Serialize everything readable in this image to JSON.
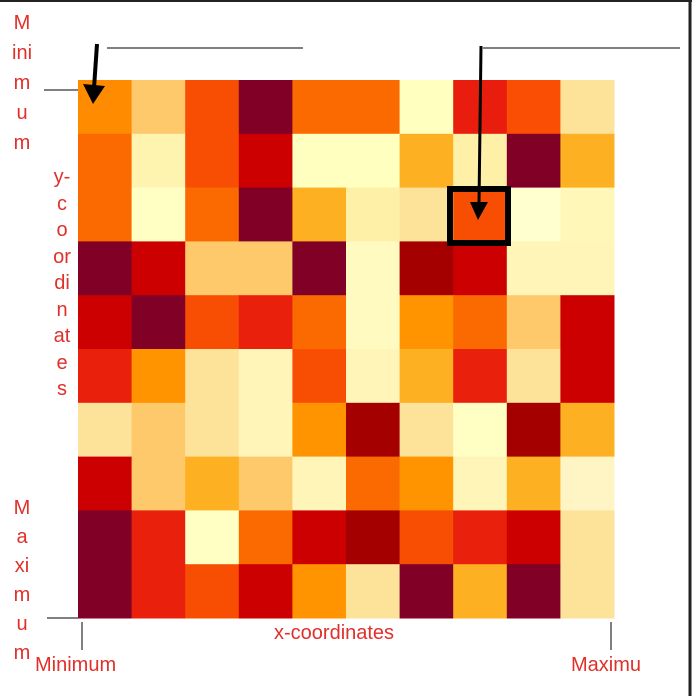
{
  "labels": {
    "y_min": "Minimum",
    "y_axis": "y-coordinates",
    "y_max": "Maximum",
    "x_axis": "x-coordinates",
    "x_min": "Minimum",
    "x_max": "Maximu"
  },
  "grid": {
    "colors": [
      [
        "#ff8c00",
        "#fdc96a",
        "#f84e04",
        "#800026",
        "#fb6a00",
        "#fb6a00",
        "#ffffc0",
        "#e81d0e",
        "#fa4e04",
        "#fde29a"
      ],
      [
        "#fb6a00",
        "#fff3b0",
        "#f84e04",
        "#cc0000",
        "#ffffc0",
        "#ffffc0",
        "#fdb022",
        "#fff0a8",
        "#800026",
        "#fdb022"
      ],
      [
        "#fb6a00",
        "#ffffc4",
        "#fb6a00",
        "#800026",
        "#fdb022",
        "#fff0a8",
        "#fde29a",
        "#f84e04",
        "#ffffd0",
        "#fff7b8"
      ],
      [
        "#800026",
        "#cc0000",
        "#fdc96a",
        "#fdc96a",
        "#800026",
        "#fffbc0",
        "#a50000",
        "#cc0000",
        "#fff5b8",
        "#fff5b8"
      ],
      [
        "#cc0000",
        "#800026",
        "#f84e04",
        "#e8200c",
        "#fb6a00",
        "#fffbc0",
        "#ff9400",
        "#fb6a00",
        "#fdc96a",
        "#cc0000"
      ],
      [
        "#e8200c",
        "#ff9400",
        "#fde29a",
        "#fff5b8",
        "#f84e04",
        "#fff5b8",
        "#fdb022",
        "#e8200c",
        "#fde29a",
        "#cc0000"
      ],
      [
        "#fde29a",
        "#fdc96a",
        "#fde29a",
        "#fff5b8",
        "#ff9400",
        "#a50000",
        "#fde29a",
        "#ffffc4",
        "#a50000",
        "#fdb022"
      ],
      [
        "#cc0000",
        "#fdc96a",
        "#fdb022",
        "#fdc96a",
        "#fff5b8",
        "#fb6a00",
        "#ff9400",
        "#fff5b8",
        "#fdb022",
        "#fff5c4"
      ],
      [
        "#800026",
        "#e8200c",
        "#ffffc4",
        "#fb6a00",
        "#cc0000",
        "#a50000",
        "#f84e04",
        "#e8200c",
        "#cc0000",
        "#fde29a"
      ],
      [
        "#800026",
        "#e8200c",
        "#f84e04",
        "#cc0000",
        "#ff9400",
        "#fde29a",
        "#800026",
        "#fdb022",
        "#800026",
        "#fde29a"
      ]
    ]
  }
}
